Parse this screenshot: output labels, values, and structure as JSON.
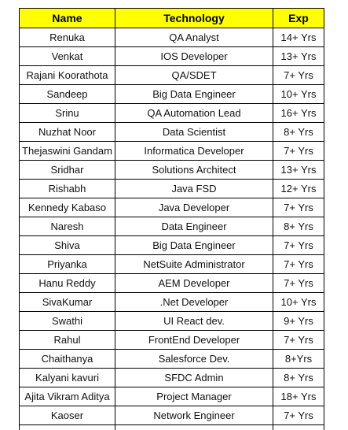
{
  "table": {
    "header_bg": "#FFFF00",
    "headers": [
      "Name",
      "Technology",
      "Exp"
    ],
    "rows": [
      {
        "name": "Renuka",
        "technology": "QA Analyst",
        "exp": "14+ Yrs"
      },
      {
        "name": "Venkat",
        "technology": "IOS  Developer",
        "exp": "13+ Yrs"
      },
      {
        "name": "Rajani Koorathota",
        "technology": "QA/SDET",
        "exp": "7+ Yrs"
      },
      {
        "name": "Sandeep",
        "technology": "Big Data Engineer",
        "exp": "10+ Yrs"
      },
      {
        "name": "Srinu",
        "technology": "QA Automation Lead",
        "exp": "16+ Yrs"
      },
      {
        "name": "Nuzhat Noor",
        "technology": "Data Scientist",
        "exp": "8+ Yrs"
      },
      {
        "name": "Thejaswini Gandam",
        "technology": "Informatica Developer",
        "exp": "7+ Yrs"
      },
      {
        "name": "Sridhar",
        "technology": "Solutions Architect",
        "exp": "13+ Yrs"
      },
      {
        "name": "Rishabh",
        "technology": "Java FSD",
        "exp": "12+ Yrs"
      },
      {
        "name": "Kennedy Kabaso",
        "technology": "Java Developer",
        "exp": "7+ Yrs"
      },
      {
        "name": "Naresh",
        "technology": "Data Engineer",
        "exp": "8+ Yrs"
      },
      {
        "name": "Shiva",
        "technology": "Big Data Engineer",
        "exp": "7+ Yrs"
      },
      {
        "name": "Priyanka",
        "technology": "NetSuite Administrator",
        "exp": "7+ Yrs"
      },
      {
        "name": "Hanu Reddy",
        "technology": "AEM Developer",
        "exp": "7+ Yrs"
      },
      {
        "name": "SivaKumar",
        "technology": ".Net Developer",
        "exp": "10+ Yrs"
      },
      {
        "name": "Swathi",
        "technology": "UI React dev.",
        "exp": "9+ Yrs"
      },
      {
        "name": "Rahul",
        "technology": "FrontEnd Developer",
        "exp": "7+ Yrs"
      },
      {
        "name": "Chaithanya",
        "technology": "Salesforce Dev.",
        "exp": "8+Yrs"
      },
      {
        "name": "Kalyani kavuri",
        "technology": "SFDC Admin",
        "exp": "8+ Yrs"
      },
      {
        "name": "Ajita Vikram Aditya",
        "technology": "Project Manager",
        "exp": "18+ Yrs"
      },
      {
        "name": "Kaoser",
        "technology": "Network Engineer",
        "exp": "7+ Yrs"
      }
    ]
  }
}
